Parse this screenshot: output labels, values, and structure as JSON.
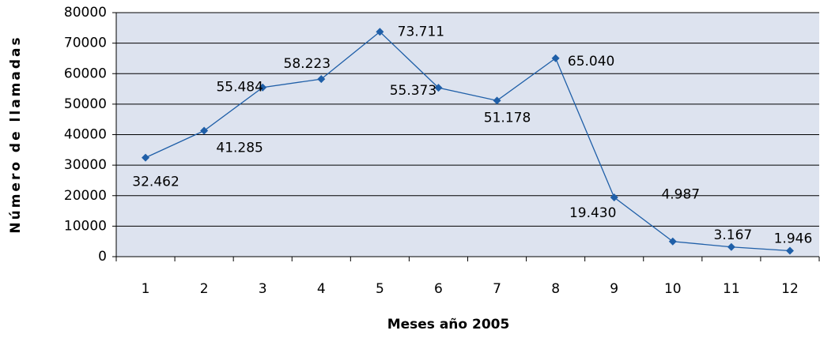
{
  "chart_data": {
    "type": "line",
    "x_label": "Meses año 2005",
    "y_label": "Número de llamadas",
    "categories": [
      "1",
      "2",
      "3",
      "4",
      "5",
      "6",
      "7",
      "8",
      "9",
      "10",
      "11",
      "12"
    ],
    "series": [
      {
        "color": "#1f5fa8",
        "values": [
          32462,
          41285,
          55484,
          58223,
          73711,
          55373,
          51178,
          65040,
          19430,
          4987,
          3167,
          1946
        ],
        "value_labels": [
          "32.462",
          "41.285",
          "55.484",
          "58.223",
          "73.711",
          "55.373",
          "51.178",
          "65.040",
          "19.430",
          "4.987",
          "3.167",
          "1.946"
        ]
      }
    ],
    "ylim": [
      0,
      80000
    ],
    "yticks": [
      0,
      10000,
      20000,
      30000,
      40000,
      50000,
      60000,
      70000,
      80000
    ],
    "grid": true
  }
}
